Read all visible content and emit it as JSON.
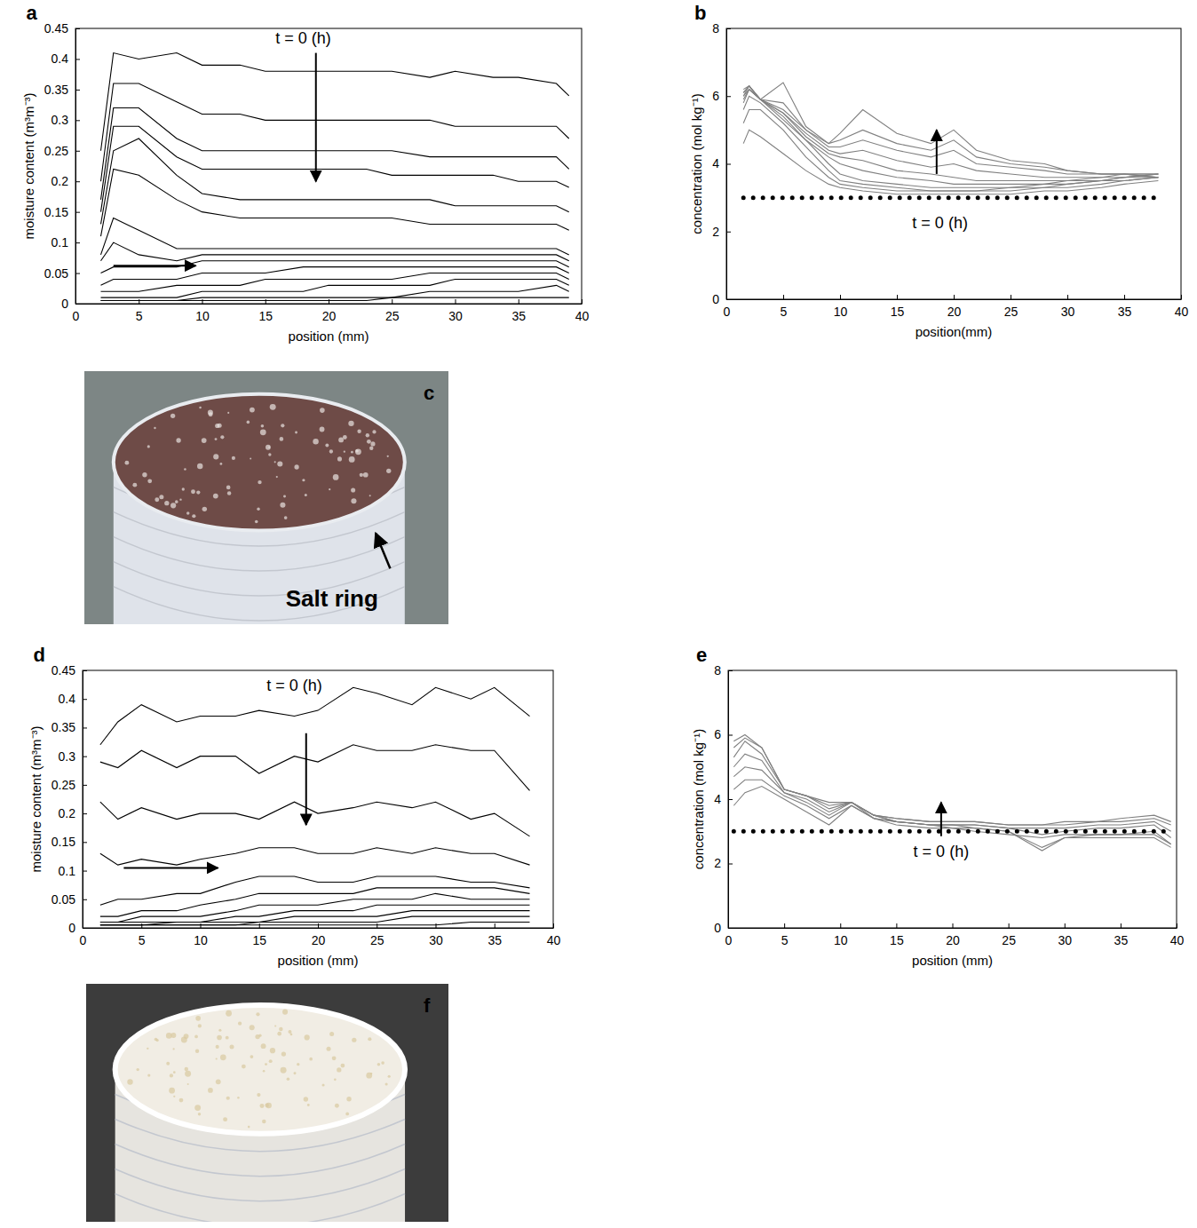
{
  "chart_data": [
    {
      "type": "line",
      "panel_label": "a",
      "annotation": "t = 0 (h)",
      "xlabel": "position (mm)",
      "ylabel": "moisture content (m³m⁻³)",
      "xlim": [
        0,
        40
      ],
      "ylim": [
        0,
        0.45
      ],
      "xticks": [
        0,
        5,
        10,
        15,
        20,
        25,
        30,
        35,
        40
      ],
      "yticks": [
        0,
        0.05,
        0.1,
        0.15,
        0.2,
        0.25,
        0.3,
        0.35,
        0.4,
        0.45
      ],
      "color": "#000000",
      "x": [
        2,
        3,
        5,
        8,
        10,
        13,
        15,
        18,
        20,
        23,
        25,
        28,
        30,
        33,
        35,
        38,
        39
      ],
      "series": [
        {
          "values": [
            0.25,
            0.41,
            0.4,
            0.41,
            0.39,
            0.39,
            0.38,
            0.38,
            0.38,
            0.38,
            0.38,
            0.37,
            0.38,
            0.37,
            0.37,
            0.36,
            0.34
          ]
        },
        {
          "values": [
            0.2,
            0.36,
            0.36,
            0.33,
            0.31,
            0.31,
            0.3,
            0.3,
            0.3,
            0.3,
            0.3,
            0.3,
            0.29,
            0.29,
            0.29,
            0.29,
            0.27
          ]
        },
        {
          "values": [
            0.17,
            0.32,
            0.32,
            0.27,
            0.25,
            0.25,
            0.25,
            0.25,
            0.25,
            0.25,
            0.25,
            0.24,
            0.24,
            0.24,
            0.24,
            0.24,
            0.22
          ]
        },
        {
          "values": [
            0.15,
            0.29,
            0.29,
            0.24,
            0.22,
            0.22,
            0.22,
            0.22,
            0.22,
            0.22,
            0.21,
            0.21,
            0.21,
            0.21,
            0.2,
            0.2,
            0.19
          ]
        },
        {
          "values": [
            0.13,
            0.25,
            0.27,
            0.21,
            0.18,
            0.17,
            0.17,
            0.17,
            0.17,
            0.17,
            0.17,
            0.17,
            0.16,
            0.16,
            0.16,
            0.16,
            0.15
          ]
        },
        {
          "values": [
            0.11,
            0.22,
            0.21,
            0.17,
            0.15,
            0.14,
            0.14,
            0.14,
            0.14,
            0.14,
            0.14,
            0.13,
            0.13,
            0.13,
            0.13,
            0.13,
            0.12
          ]
        },
        {
          "values": [
            0.08,
            0.14,
            0.12,
            0.09,
            0.09,
            0.09,
            0.09,
            0.09,
            0.09,
            0.09,
            0.09,
            0.09,
            0.09,
            0.09,
            0.09,
            0.09,
            0.08
          ]
        },
        {
          "values": [
            0.07,
            0.1,
            0.08,
            0.07,
            0.08,
            0.08,
            0.08,
            0.08,
            0.08,
            0.08,
            0.08,
            0.08,
            0.08,
            0.08,
            0.08,
            0.08,
            0.07
          ]
        },
        {
          "values": [
            0.05,
            0.06,
            0.06,
            0.06,
            0.07,
            0.07,
            0.07,
            0.07,
            0.07,
            0.07,
            0.07,
            0.07,
            0.07,
            0.07,
            0.07,
            0.07,
            0.06
          ]
        },
        {
          "values": [
            0.03,
            0.04,
            0.04,
            0.04,
            0.05,
            0.05,
            0.05,
            0.06,
            0.06,
            0.06,
            0.06,
            0.06,
            0.06,
            0.06,
            0.06,
            0.06,
            0.05
          ]
        },
        {
          "values": [
            0.02,
            0.02,
            0.02,
            0.03,
            0.03,
            0.03,
            0.04,
            0.04,
            0.04,
            0.04,
            0.04,
            0.05,
            0.05,
            0.05,
            0.05,
            0.05,
            0.04
          ]
        },
        {
          "values": [
            0.01,
            0.01,
            0.01,
            0.01,
            0.02,
            0.02,
            0.02,
            0.02,
            0.03,
            0.03,
            0.03,
            0.03,
            0.04,
            0.04,
            0.04,
            0.04,
            0.03
          ]
        },
        {
          "values": [
            0.005,
            0.005,
            0.005,
            0.005,
            0.01,
            0.01,
            0.01,
            0.01,
            0.01,
            0.01,
            0.01,
            0.02,
            0.02,
            0.02,
            0.02,
            0.03,
            0.02
          ]
        },
        {
          "values": [
            0.005,
            0.005,
            0.005,
            0.005,
            0.005,
            0.005,
            0.005,
            0.005,
            0.005,
            0.005,
            0.01,
            0.01,
            0.01,
            0.01,
            0.01,
            0.01,
            0.01
          ]
        }
      ]
    },
    {
      "type": "line",
      "panel_label": "b",
      "annotation": "t = 0 (h)",
      "xlabel": "position(mm)",
      "ylabel": "concentration (mol kg⁻¹)",
      "xlim": [
        0,
        40
      ],
      "ylim": [
        0,
        8
      ],
      "xticks": [
        0,
        5,
        10,
        15,
        20,
        25,
        30,
        35,
        40
      ],
      "yticks": [
        0,
        2,
        4,
        6,
        8
      ],
      "color": "#808080",
      "x": [
        1.5,
        2,
        3,
        5,
        7,
        9,
        10,
        12,
        15,
        18,
        20,
        22,
        25,
        28,
        30,
        33,
        35,
        38
      ],
      "series": [
        {
          "values": [
            4.6,
            5.0,
            4.8,
            4.3,
            3.8,
            3.4,
            3.3,
            3.2,
            3.1,
            3.1,
            3.1,
            3.1,
            3.1,
            3.2,
            3.2,
            3.3,
            3.4,
            3.5
          ]
        },
        {
          "values": [
            5.2,
            5.6,
            5.6,
            5.0,
            4.2,
            3.6,
            3.4,
            3.3,
            3.2,
            3.2,
            3.2,
            3.2,
            3.2,
            3.3,
            3.3,
            3.4,
            3.5,
            3.6
          ]
        },
        {
          "values": [
            5.6,
            6.0,
            5.8,
            5.2,
            4.5,
            3.8,
            3.5,
            3.4,
            3.3,
            3.2,
            3.2,
            3.2,
            3.3,
            3.3,
            3.4,
            3.5,
            3.5,
            3.6
          ]
        },
        {
          "values": [
            5.8,
            6.2,
            5.9,
            5.3,
            4.7,
            4.0,
            3.7,
            3.5,
            3.4,
            3.3,
            3.3,
            3.3,
            3.3,
            3.4,
            3.4,
            3.5,
            3.6,
            3.6
          ]
        },
        {
          "values": [
            5.9,
            6.2,
            5.9,
            5.4,
            4.7,
            4.2,
            4.0,
            3.8,
            3.6,
            3.5,
            3.4,
            3.4,
            3.4,
            3.4,
            3.5,
            3.5,
            3.6,
            3.7
          ]
        },
        {
          "values": [
            6.0,
            6.2,
            5.9,
            5.5,
            4.8,
            4.3,
            4.2,
            4.1,
            3.8,
            3.7,
            3.6,
            3.5,
            3.5,
            3.5,
            3.5,
            3.6,
            3.6,
            3.7
          ]
        },
        {
          "values": [
            6.0,
            6.3,
            5.9,
            5.5,
            4.9,
            4.4,
            4.3,
            4.4,
            4.1,
            3.9,
            4.0,
            3.8,
            3.7,
            3.6,
            3.6,
            3.6,
            3.7,
            3.7
          ]
        },
        {
          "values": [
            6.1,
            6.3,
            5.9,
            5.6,
            5.0,
            4.5,
            4.5,
            4.7,
            4.4,
            4.2,
            4.4,
            4.0,
            3.9,
            3.8,
            3.7,
            3.7,
            3.7,
            3.7
          ]
        },
        {
          "values": [
            6.1,
            6.3,
            5.9,
            5.8,
            5.0,
            4.6,
            4.7,
            5.0,
            4.6,
            4.4,
            4.7,
            4.2,
            4.0,
            3.9,
            3.8,
            3.7,
            3.7,
            3.6
          ]
        },
        {
          "values": [
            6.2,
            6.3,
            5.9,
            6.4,
            5.1,
            4.6,
            4.9,
            5.6,
            4.9,
            4.6,
            5.0,
            4.4,
            4.1,
            4.0,
            3.8,
            3.7,
            3.7,
            3.6
          ]
        },
        {
          "color": "#000000",
          "line_style": "dotted",
          "values": [
            3,
            3,
            3,
            3,
            3,
            3,
            3,
            3,
            3,
            3,
            3,
            3,
            3,
            3,
            3,
            3,
            3,
            3
          ]
        }
      ]
    },
    {
      "type": "line",
      "panel_label": "d",
      "annotation": "t = 0 (h)",
      "xlabel": "position (mm)",
      "ylabel": "moisture content (m³m⁻³)",
      "xlim": [
        0,
        40
      ],
      "ylim": [
        0,
        0.45
      ],
      "xticks": [
        0,
        5,
        10,
        15,
        20,
        25,
        30,
        35,
        40
      ],
      "yticks": [
        0,
        0.05,
        0.1,
        0.15,
        0.2,
        0.25,
        0.3,
        0.35,
        0.4,
        0.45
      ],
      "color": "#000000",
      "x": [
        1.5,
        3,
        5,
        8,
        10,
        13,
        15,
        18,
        20,
        23,
        25,
        28,
        30,
        33,
        35,
        38
      ],
      "series": [
        {
          "values": [
            0.32,
            0.36,
            0.39,
            0.36,
            0.37,
            0.37,
            0.38,
            0.37,
            0.38,
            0.42,
            0.41,
            0.39,
            0.42,
            0.4,
            0.42,
            0.37
          ]
        },
        {
          "values": [
            0.29,
            0.28,
            0.31,
            0.28,
            0.3,
            0.3,
            0.27,
            0.3,
            0.29,
            0.32,
            0.31,
            0.31,
            0.32,
            0.31,
            0.31,
            0.24
          ]
        },
        {
          "values": [
            0.22,
            0.19,
            0.21,
            0.19,
            0.2,
            0.2,
            0.19,
            0.22,
            0.2,
            0.21,
            0.22,
            0.21,
            0.22,
            0.19,
            0.2,
            0.16
          ]
        },
        {
          "values": [
            0.13,
            0.11,
            0.12,
            0.11,
            0.12,
            0.13,
            0.14,
            0.14,
            0.13,
            0.13,
            0.14,
            0.13,
            0.14,
            0.13,
            0.13,
            0.11
          ]
        },
        {
          "values": [
            0.04,
            0.05,
            0.05,
            0.06,
            0.06,
            0.08,
            0.09,
            0.09,
            0.08,
            0.08,
            0.09,
            0.09,
            0.09,
            0.08,
            0.08,
            0.07
          ]
        },
        {
          "values": [
            0.02,
            0.02,
            0.03,
            0.03,
            0.04,
            0.05,
            0.06,
            0.06,
            0.06,
            0.06,
            0.07,
            0.07,
            0.07,
            0.07,
            0.07,
            0.06
          ]
        },
        {
          "values": [
            0.01,
            0.01,
            0.02,
            0.02,
            0.02,
            0.03,
            0.04,
            0.04,
            0.04,
            0.05,
            0.05,
            0.05,
            0.06,
            0.05,
            0.05,
            0.05
          ]
        },
        {
          "values": [
            0.01,
            0.01,
            0.01,
            0.01,
            0.01,
            0.02,
            0.02,
            0.03,
            0.03,
            0.03,
            0.04,
            0.04,
            0.04,
            0.04,
            0.04,
            0.04
          ]
        },
        {
          "values": [
            0.005,
            0.005,
            0.005,
            0.01,
            0.01,
            0.01,
            0.01,
            0.02,
            0.02,
            0.02,
            0.02,
            0.03,
            0.03,
            0.03,
            0.03,
            0.03
          ]
        },
        {
          "values": [
            0.005,
            0.005,
            0.005,
            0.005,
            0.005,
            0.005,
            0.01,
            0.01,
            0.01,
            0.01,
            0.01,
            0.02,
            0.02,
            0.02,
            0.02,
            0.02
          ]
        },
        {
          "values": [
            0.005,
            0.005,
            0.005,
            0.005,
            0.005,
            0.005,
            0.005,
            0.005,
            0.005,
            0.005,
            0.005,
            0.005,
            0.005,
            0.01,
            0.01,
            0.01
          ]
        }
      ]
    },
    {
      "type": "line",
      "panel_label": "e",
      "annotation": "t = 0 (h)",
      "xlabel": "position (mm)",
      "ylabel": "concentration (mol kg⁻¹)",
      "xlim": [
        0,
        40
      ],
      "ylim": [
        0,
        8
      ],
      "xticks": [
        0,
        5,
        10,
        15,
        20,
        25,
        30,
        35,
        40
      ],
      "yticks": [
        0,
        2,
        4,
        6,
        8
      ],
      "color": "#808080",
      "x": [
        0.5,
        1.5,
        3,
        5,
        7,
        9,
        11,
        13,
        15,
        18,
        20,
        22,
        25,
        28,
        30,
        33,
        35,
        38,
        39.5
      ],
      "series": [
        {
          "values": [
            3.8,
            4.2,
            4.4,
            4.0,
            3.6,
            3.2,
            3.8,
            3.4,
            3.2,
            3.1,
            3.1,
            3.0,
            2.9,
            2.8,
            2.9,
            2.9,
            2.9,
            2.9,
            2.6
          ]
        },
        {
          "values": [
            4.3,
            4.6,
            4.6,
            4.1,
            3.8,
            3.4,
            3.8,
            3.4,
            3.3,
            3.2,
            3.1,
            3.1,
            3.0,
            2.5,
            2.8,
            2.8,
            2.8,
            2.8,
            2.5
          ]
        },
        {
          "values": [
            4.7,
            5.0,
            4.9,
            4.2,
            3.9,
            3.5,
            3.9,
            3.4,
            3.3,
            3.2,
            3.2,
            3.1,
            3.0,
            2.4,
            2.8,
            2.9,
            2.9,
            3.0,
            2.6
          ]
        },
        {
          "values": [
            5.0,
            5.4,
            5.2,
            4.2,
            4.0,
            3.6,
            3.9,
            3.5,
            3.3,
            3.2,
            3.2,
            3.2,
            3.1,
            2.9,
            3.0,
            3.1,
            3.1,
            3.2,
            2.8
          ]
        },
        {
          "values": [
            5.3,
            5.8,
            5.4,
            4.3,
            4.1,
            3.7,
            3.9,
            3.5,
            3.3,
            3.2,
            3.2,
            3.2,
            3.1,
            3.1,
            3.1,
            3.2,
            3.2,
            3.3,
            3.0
          ]
        },
        {
          "values": [
            5.6,
            5.9,
            5.6,
            4.3,
            4.1,
            3.8,
            3.9,
            3.5,
            3.4,
            3.3,
            3.3,
            3.3,
            3.2,
            3.2,
            3.2,
            3.3,
            3.3,
            3.4,
            3.2
          ]
        },
        {
          "values": [
            5.8,
            6.0,
            5.6,
            4.3,
            4.1,
            3.9,
            3.9,
            3.5,
            3.4,
            3.3,
            3.3,
            3.3,
            3.2,
            3.2,
            3.3,
            3.3,
            3.4,
            3.5,
            3.3
          ]
        },
        {
          "color": "#000000",
          "line_style": "dotted",
          "values": [
            3,
            3,
            3,
            3,
            3,
            3,
            3,
            3,
            3,
            3,
            3,
            3,
            3,
            3,
            3,
            3,
            3,
            3,
            3
          ]
        }
      ]
    }
  ],
  "photos": [
    {
      "panel_label": "c",
      "annotation": "Salt ring"
    },
    {
      "panel_label": "f"
    }
  ]
}
